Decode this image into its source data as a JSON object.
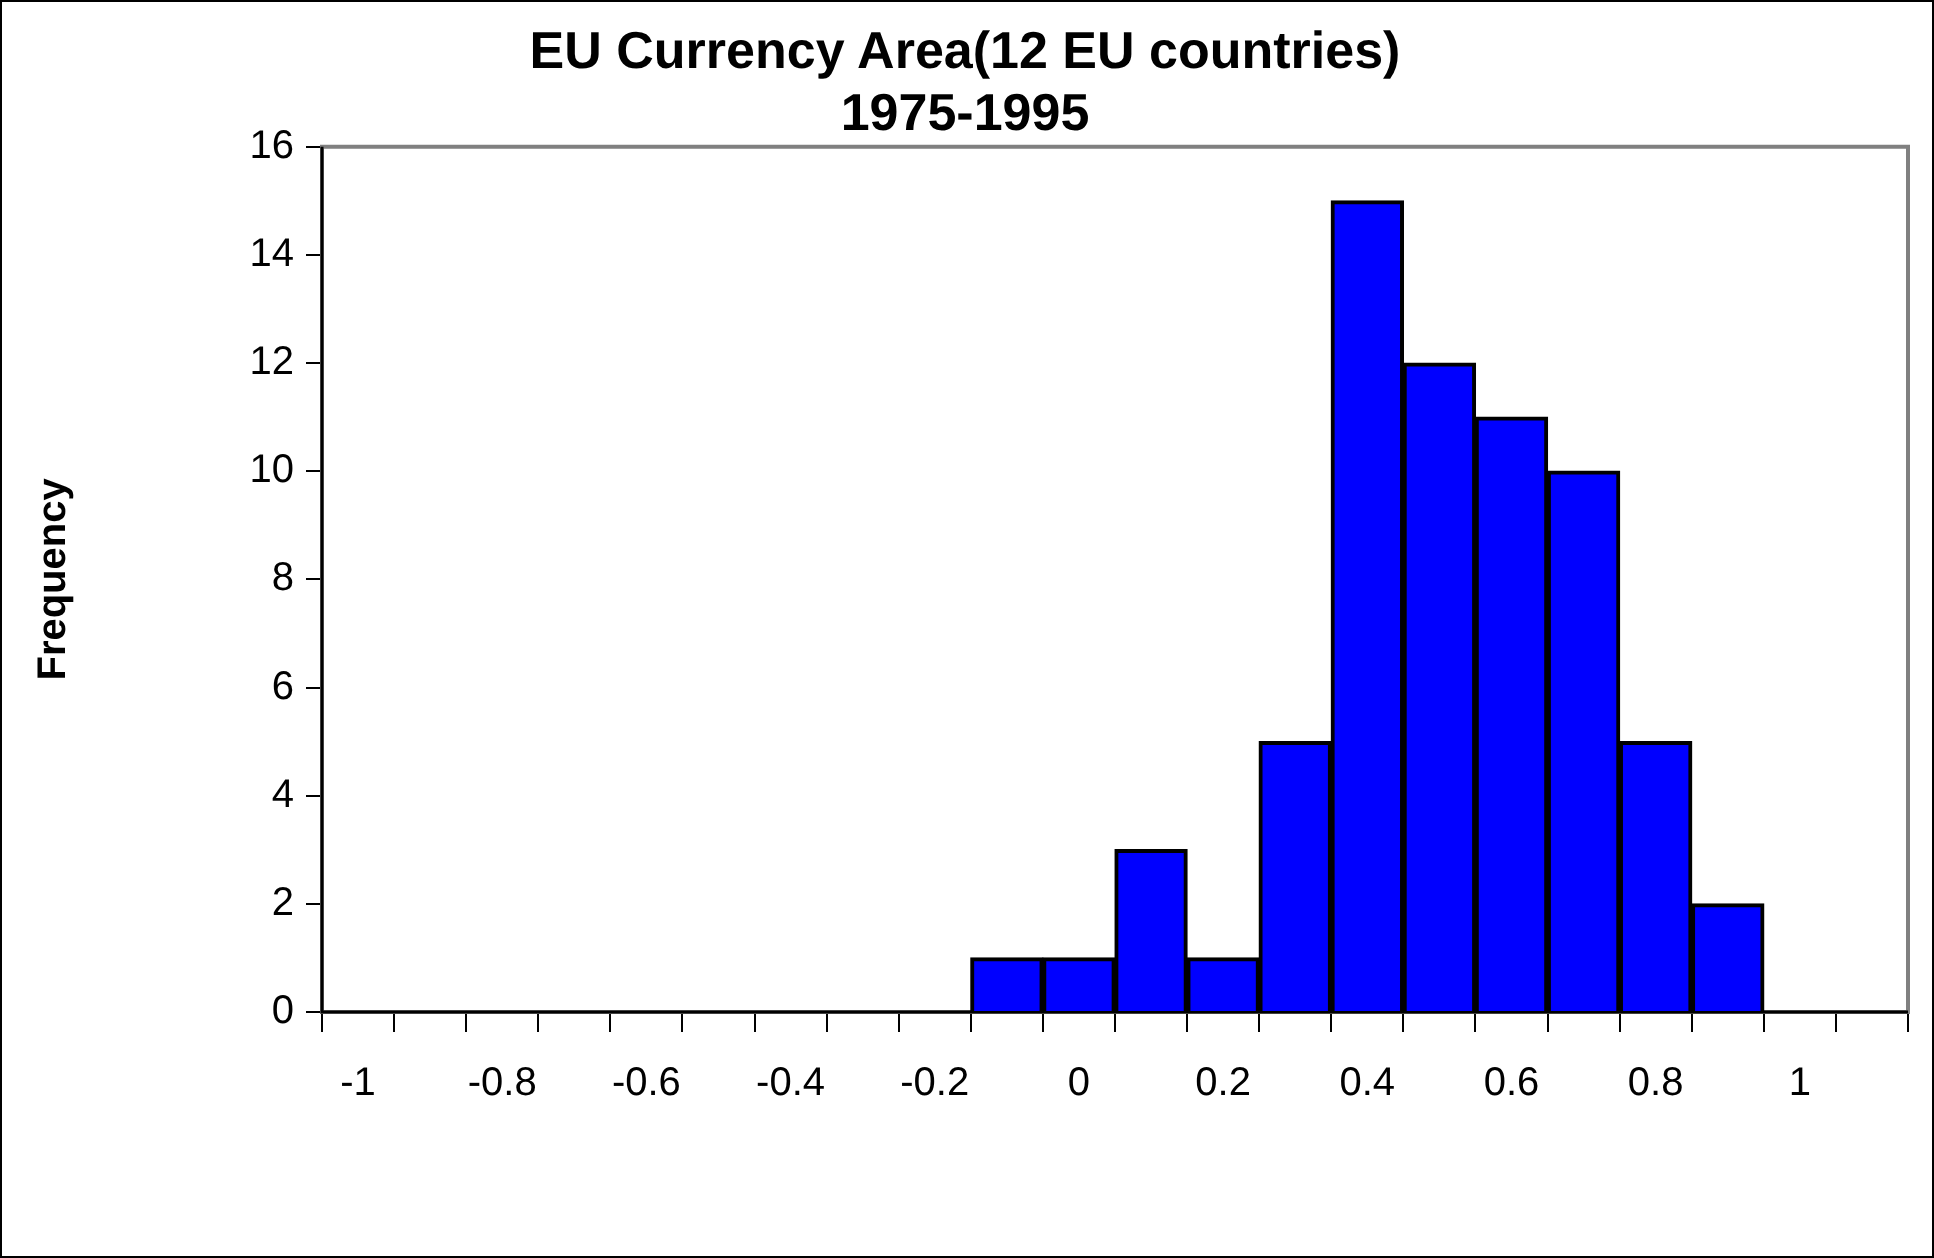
{
  "chart_data": {
    "type": "bar",
    "title": "EU Currency Area(12 EU countries)\n1975-1995",
    "ylabel": "Frequency",
    "categories": [
      "-1",
      null,
      "-0.8",
      null,
      "-0.6",
      null,
      "-0.4",
      null,
      "-0.2",
      null,
      "0",
      null,
      "0.2",
      null,
      "0.4",
      null,
      "0.6",
      null,
      "0.8",
      null,
      "1",
      null
    ],
    "values": [
      0,
      0,
      0,
      0,
      0,
      0,
      0,
      0,
      0,
      1,
      1,
      3,
      1,
      5,
      15,
      12,
      11,
      10,
      5,
      2,
      0,
      0
    ],
    "color": "#0000ff",
    "ylim": [
      0,
      16
    ],
    "yticks": [
      0,
      2,
      4,
      6,
      8,
      10,
      12,
      14,
      16
    ],
    "grid": false,
    "legend": false
  }
}
